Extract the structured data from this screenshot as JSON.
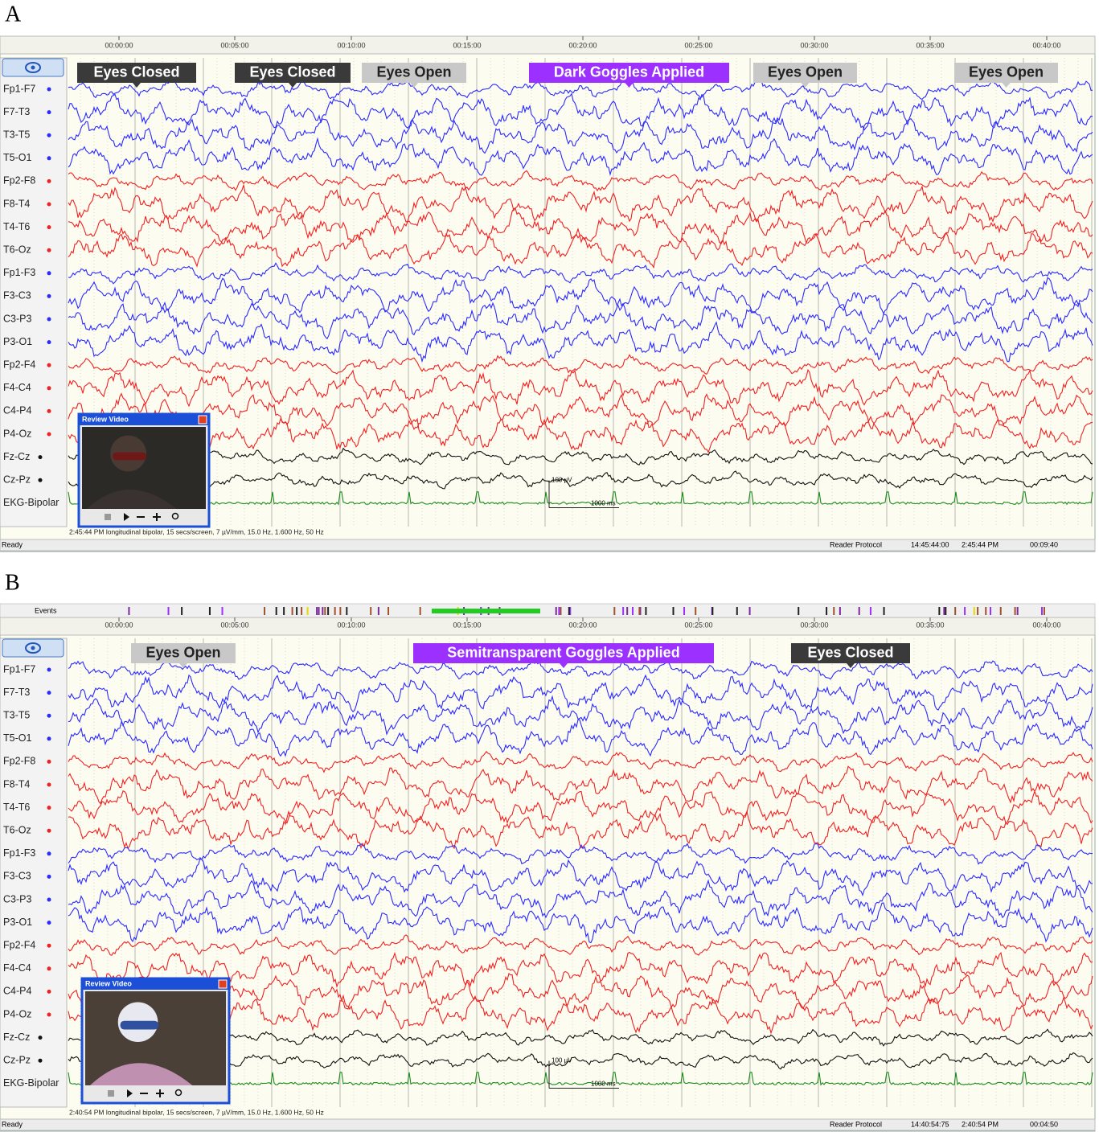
{
  "panels": [
    {
      "label": "A",
      "time_labels": [
        "00:00:00",
        "00:05:00",
        "00:10:00",
        "00:15:00",
        "00:20:00",
        "00:25:00",
        "00:30:00",
        "00:35:00",
        "00:40:00"
      ],
      "annotations": [
        {
          "text": "Eyes Closed",
          "color": "#3a3a3a",
          "text_color": "#ffffff"
        },
        {
          "text": "Eyes Closed",
          "color": "#3a3a3a",
          "text_color": "#ffffff"
        },
        {
          "text": "Eyes Open",
          "color": "#c8c8c8",
          "text_color": "#222222"
        },
        {
          "text": "Dark Goggles Applied",
          "color": "#9b30ff",
          "text_color": "#ffffff"
        },
        {
          "text": "Eyes Open",
          "color": "#c8c8c8",
          "text_color": "#222222"
        },
        {
          "text": "Eyes Open",
          "color": "#c8c8c8",
          "text_color": "#222222"
        }
      ],
      "channels": [
        {
          "name": "Fp1-F7",
          "color": "#2b2bff"
        },
        {
          "name": "F7-T3",
          "color": "#2b2bff"
        },
        {
          "name": "T3-T5",
          "color": "#2b2bff"
        },
        {
          "name": "T5-O1",
          "color": "#2b2bff"
        },
        {
          "name": "Fp2-F8",
          "color": "#ee2222"
        },
        {
          "name": "F8-T4",
          "color": "#ee2222"
        },
        {
          "name": "T4-T6",
          "color": "#ee2222"
        },
        {
          "name": "T6-Oz",
          "color": "#ee2222"
        },
        {
          "name": "Fp1-F3",
          "color": "#2b2bff"
        },
        {
          "name": "F3-C3",
          "color": "#2b2bff"
        },
        {
          "name": "C3-P3",
          "color": "#2b2bff"
        },
        {
          "name": "P3-O1",
          "color": "#2b2bff"
        },
        {
          "name": "Fp2-F4",
          "color": "#ee2222"
        },
        {
          "name": "F4-C4",
          "color": "#ee2222"
        },
        {
          "name": "C4-P4",
          "color": "#ee2222"
        },
        {
          "name": "P4-Oz",
          "color": "#ee2222"
        },
        {
          "name": "Fz-Cz",
          "color": "#111111"
        },
        {
          "name": "Cz-Pz",
          "color": "#111111"
        },
        {
          "name": "EKG-Bipolar",
          "color": "#1a8a1a"
        }
      ],
      "video_title": "Review Video",
      "scale_amplitude": "100 µV",
      "scale_time": "1000 ms",
      "info": "2:45:44 PM longitudinal bipolar, 15 secs/screen, 7 µV/mm, 15.0 Hz, 1.600 Hz, 50 Hz",
      "status": [
        "Ready",
        "Reader Protocol",
        "14:45:44:00",
        "2:45:44 PM",
        "00:09:40"
      ]
    },
    {
      "label": "B",
      "events_label": "Events",
      "time_labels": [
        "00:00:00",
        "00:05:00",
        "00:10:00",
        "00:15:00",
        "00:20:00",
        "00:25:00",
        "00:30:00",
        "00:35:00",
        "00:40:00"
      ],
      "annotations": [
        {
          "text": "Eyes Open",
          "color": "#c8c8c8",
          "text_color": "#222222"
        },
        {
          "text": "Semitransparent Goggles Applied",
          "color": "#9b30ff",
          "text_color": "#ffffff"
        },
        {
          "text": "Eyes Closed",
          "color": "#3a3a3a",
          "text_color": "#ffffff"
        }
      ],
      "channels": [
        {
          "name": "Fp1-F7",
          "color": "#2b2bff"
        },
        {
          "name": "F7-T3",
          "color": "#2b2bff"
        },
        {
          "name": "T3-T5",
          "color": "#2b2bff"
        },
        {
          "name": "T5-O1",
          "color": "#2b2bff"
        },
        {
          "name": "Fp2-F8",
          "color": "#ee2222"
        },
        {
          "name": "F8-T4",
          "color": "#ee2222"
        },
        {
          "name": "T4-T6",
          "color": "#ee2222"
        },
        {
          "name": "T6-Oz",
          "color": "#ee2222"
        },
        {
          "name": "Fp1-F3",
          "color": "#2b2bff"
        },
        {
          "name": "F3-C3",
          "color": "#2b2bff"
        },
        {
          "name": "C3-P3",
          "color": "#2b2bff"
        },
        {
          "name": "P3-O1",
          "color": "#2b2bff"
        },
        {
          "name": "Fp2-F4",
          "color": "#ee2222"
        },
        {
          "name": "F4-C4",
          "color": "#ee2222"
        },
        {
          "name": "C4-P4",
          "color": "#ee2222"
        },
        {
          "name": "P4-Oz",
          "color": "#ee2222"
        },
        {
          "name": "Fz-Cz",
          "color": "#111111"
        },
        {
          "name": "Cz-Pz",
          "color": "#111111"
        },
        {
          "name": "EKG-Bipolar",
          "color": "#1a8a1a"
        }
      ],
      "video_title": "Review Video",
      "scale_amplitude": "100 µV",
      "scale_time": "1000 ms",
      "info": "2:40:54 PM longitudinal bipolar, 15 secs/screen, 7 µV/mm, 15.0 Hz, 1.600 Hz, 50 Hz",
      "status": [
        "Ready",
        "Reader Protocol",
        "14:40:54:75",
        "2:40:54 PM",
        "00:04:50"
      ]
    }
  ]
}
